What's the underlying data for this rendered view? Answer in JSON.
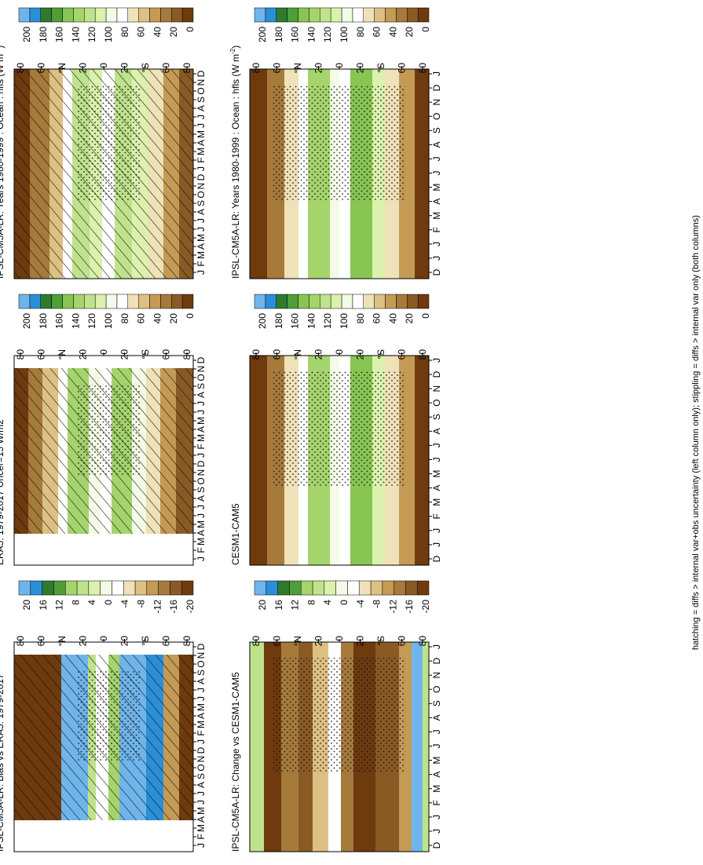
{
  "footnote": "hatching = diffs > internal var+obs uncertainty (left column only); stippling = diffs > internal var only (both columns)",
  "colors": {
    "abs_scale": [
      "#6e3a0e",
      "#8a5a25",
      "#a57a3b",
      "#c49a55",
      "#ddc083",
      "#efe1b8",
      "#ffffff",
      "#f3fbe6",
      "#dbf1ad",
      "#bfe38c",
      "#a5d46d",
      "#88c553",
      "#4f9e38",
      "#2f7a2d",
      "#2b8fd8",
      "#6fb5ec"
    ],
    "diff_scale": [
      "#6e3a0e",
      "#8a5a25",
      "#a57a3b",
      "#c49a55",
      "#ddc083",
      "#efe1b8",
      "#ffffff",
      "#f3fbe6",
      "#dbf1ad",
      "#bfe38c",
      "#a5d46d",
      "#4f9e38",
      "#2f7a2d",
      "#2b8fd8",
      "#6fb5ec"
    ]
  },
  "chart_data": [
    {
      "id": "left-top",
      "type": "heatmap",
      "title": "IPSL-CM5A-LR: Years 1980-1999 : Ocean : hfls (W m",
      "title_sup": "-2",
      "title_close": ")",
      "x_ticks": [
        "J",
        "F",
        "M",
        "A",
        "M",
        "J",
        "J",
        "A",
        "S",
        "O",
        "N",
        "D",
        "J",
        "F",
        "M",
        "A",
        "M",
        "J",
        "J",
        "A",
        "S",
        "O",
        "N",
        "D"
      ],
      "lat_ticks": [
        "80",
        "60",
        "°N",
        "20",
        "0",
        "20",
        "°S",
        "60",
        "80"
      ],
      "colorbar_ticks": [
        "200",
        "180",
        "160",
        "140",
        "120",
        "100",
        "80",
        "60",
        "40",
        "20",
        "0"
      ],
      "hatching": true,
      "stippling": true
    },
    {
      "id": "left-mid",
      "type": "heatmap",
      "title": "ERA5: 1979-2017 Uncer=15 W/m2",
      "x_ticks": [
        "J",
        "F",
        "M",
        "A",
        "M",
        "J",
        "J",
        "A",
        "S",
        "O",
        "N",
        "D",
        "J",
        "F",
        "M",
        "A",
        "M",
        "J",
        "J",
        "A",
        "S",
        "O",
        "N",
        "D"
      ],
      "lat_ticks": [
        "80",
        "60",
        "°N",
        "20",
        "0",
        "20",
        "°S",
        "60",
        "80"
      ],
      "colorbar_ticks": [
        "200",
        "180",
        "160",
        "140",
        "120",
        "100",
        "80",
        "60",
        "40",
        "20",
        "0"
      ],
      "hatching": true,
      "stippling": true
    },
    {
      "id": "left-bot",
      "type": "heatmap",
      "title": "IPSL-CM5A-LR: Bias vs ERA5: 1979-2017",
      "x_ticks": [
        "J",
        "F",
        "M",
        "A",
        "M",
        "J",
        "J",
        "A",
        "S",
        "O",
        "N",
        "D",
        "J",
        "F",
        "M",
        "A",
        "M",
        "J",
        "J",
        "A",
        "S",
        "O",
        "N",
        "D"
      ],
      "lat_ticks": [
        "80",
        "60",
        "°N",
        "20",
        "0",
        "20",
        "°S",
        "60",
        "80"
      ],
      "colorbar_ticks": [
        "20",
        "16",
        "12",
        "8",
        "4",
        "0",
        "-4",
        "-8",
        "-12",
        "-16",
        "-20"
      ],
      "hatching": true,
      "stippling": true
    },
    {
      "id": "right-top",
      "type": "heatmap",
      "title": "IPSL-CM5A-LR: Years 1980-1999 : Ocean : hfls (W m",
      "title_sup": "-2",
      "title_close": ")",
      "x_ticks": [
        "D",
        "J",
        "J",
        "F",
        "M",
        "A",
        "M",
        "J",
        "J",
        "A",
        "S",
        "O",
        "N",
        "D",
        "J"
      ],
      "lat_ticks": [
        "80",
        "60",
        "°N",
        "20",
        "0",
        "20",
        "°S",
        "60",
        "80"
      ],
      "colorbar_ticks": [
        "200",
        "180",
        "160",
        "140",
        "120",
        "100",
        "80",
        "60",
        "40",
        "20",
        "0"
      ],
      "hatching": false,
      "stippling": true
    },
    {
      "id": "right-mid",
      "type": "heatmap",
      "title": "CESM1-CAM5",
      "x_ticks": [
        "D",
        "J",
        "J",
        "F",
        "M",
        "A",
        "M",
        "J",
        "J",
        "A",
        "S",
        "O",
        "N",
        "D",
        "J"
      ],
      "lat_ticks": [
        "80",
        "60",
        "°N",
        "20",
        "0",
        "20",
        "°S",
        "60",
        "80"
      ],
      "colorbar_ticks": [
        "200",
        "180",
        "160",
        "140",
        "120",
        "100",
        "80",
        "60",
        "40",
        "20",
        "0"
      ],
      "hatching": false,
      "stippling": true
    },
    {
      "id": "right-bot",
      "type": "heatmap",
      "title": "IPSL-CM5A-LR: Change vs CESM1-CAM5",
      "x_ticks": [
        "D",
        "J",
        "J",
        "F",
        "M",
        "A",
        "M",
        "J",
        "J",
        "A",
        "S",
        "O",
        "N",
        "D",
        "J"
      ],
      "lat_ticks": [
        "80",
        "60",
        "°N",
        "20",
        "0",
        "20",
        "°S",
        "60",
        "80"
      ],
      "colorbar_ticks": [
        "20",
        "16",
        "12",
        "8",
        "4",
        "0",
        "-4",
        "-8",
        "-12",
        "-16",
        "-20"
      ],
      "hatching": false,
      "stippling": true
    }
  ]
}
